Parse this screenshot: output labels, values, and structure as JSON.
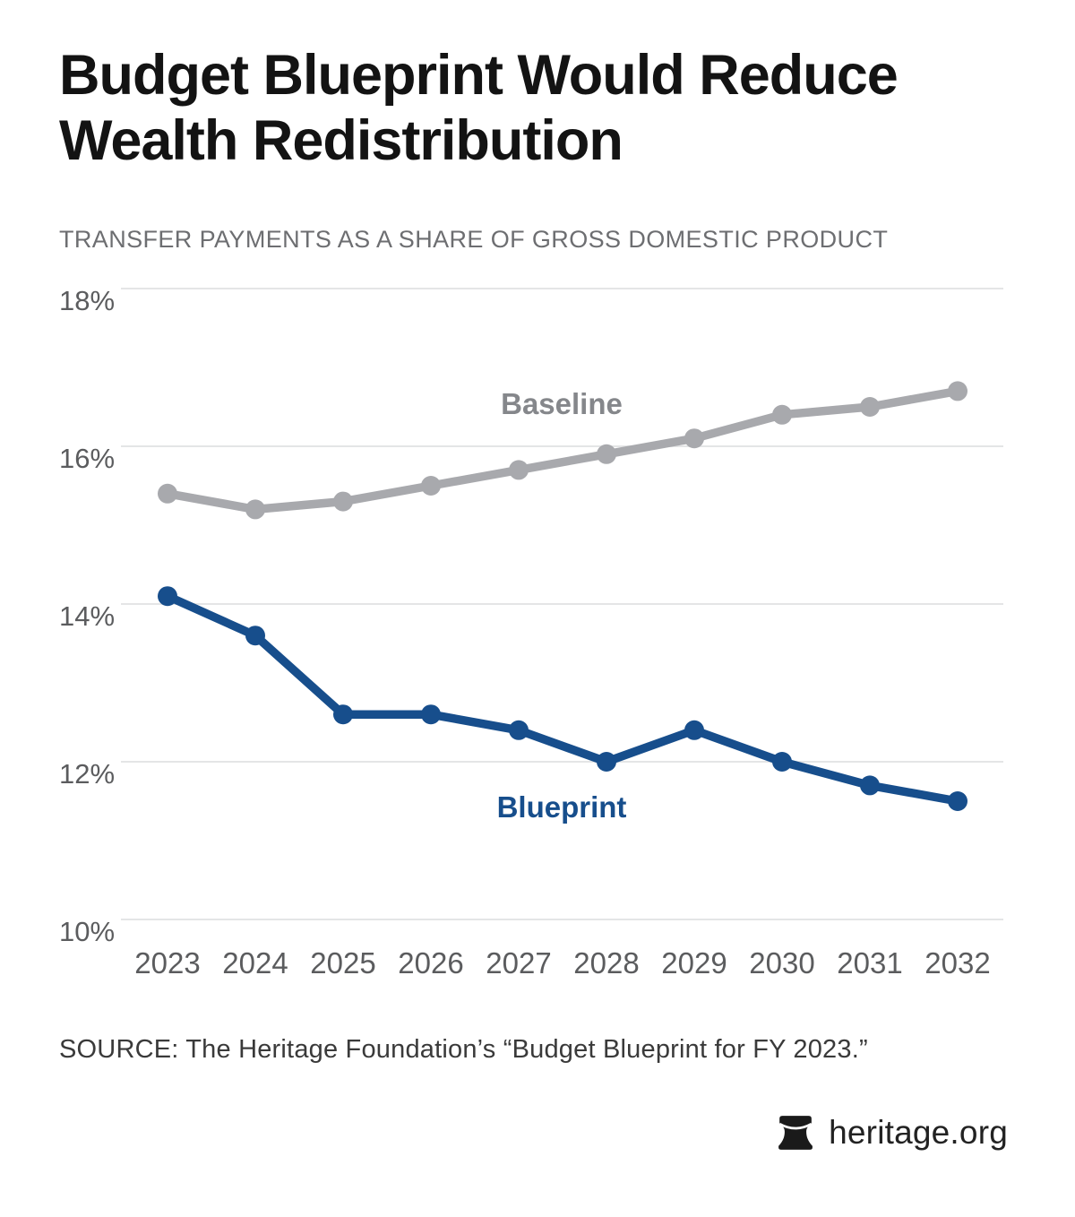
{
  "header": {
    "title_line1": "Budget Blueprint Would Reduce",
    "title_line2": "Wealth Redistribution",
    "subtitle": "TRANSFER PAYMENTS AS A SHARE OF GROSS DOMESTIC PRODUCT"
  },
  "chart_data": {
    "type": "line",
    "title": "Budget Blueprint Would Reduce Wealth Redistribution",
    "subtitle": "TRANSFER PAYMENTS AS A SHARE OF GROSS DOMESTIC PRODUCT",
    "x": [
      "2023",
      "2024",
      "2025",
      "2026",
      "2027",
      "2028",
      "2029",
      "2030",
      "2031",
      "2032"
    ],
    "series": [
      {
        "name": "Baseline",
        "color": "#a8a9ad",
        "label_color": "#85878b",
        "values": [
          15.4,
          15.2,
          15.3,
          15.5,
          15.7,
          15.9,
          16.1,
          16.4,
          16.5,
          16.7
        ]
      },
      {
        "name": "Blueprint",
        "color": "#174e8c",
        "label_color": "#174e8c",
        "values": [
          14.1,
          13.6,
          12.6,
          12.6,
          12.4,
          12.0,
          12.4,
          12.0,
          11.7,
          11.5
        ]
      }
    ],
    "xlabel": "",
    "ylabel": "",
    "ylim": [
      10,
      18
    ],
    "yticks": [
      18,
      16,
      14,
      12,
      10
    ],
    "ytick_suffix": "%",
    "grid": true,
    "grid_color": "#e4e5e6",
    "tick_label_color": "#5b5c5e",
    "legend_position": "inline-labels"
  },
  "source": "SOURCE: The Heritage Foundation’s “Budget Blueprint for FY 2023.”",
  "footer": {
    "site": "heritage.org",
    "logo": "liberty-bell-icon"
  }
}
